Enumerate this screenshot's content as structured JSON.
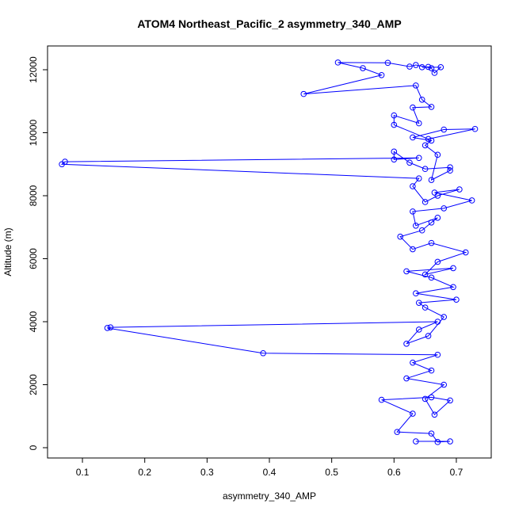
{
  "chart_data": {
    "type": "line",
    "title": "ATOM4 Northeast_Pacific_2 asymmetry_340_AMP",
    "x_label": "asymmetry_340_AMP",
    "y_label": "Altitude (m)",
    "color": "#0000ff",
    "x": [
      0.635,
      0.69,
      0.67,
      0.66,
      0.605,
      0.63,
      0.58,
      0.66,
      0.69,
      0.665,
      0.65,
      0.68,
      0.62,
      0.66,
      0.63,
      0.67,
      0.39,
      0.14,
      0.145,
      0.67,
      0.64,
      0.62,
      0.655,
      0.68,
      0.65,
      0.64,
      0.7,
      0.635,
      0.695,
      0.66,
      0.62,
      0.695,
      0.65,
      0.67,
      0.715,
      0.66,
      0.63,
      0.61,
      0.645,
      0.66,
      0.67,
      0.635,
      0.63,
      0.68,
      0.725,
      0.665,
      0.705,
      0.67,
      0.65,
      0.63,
      0.64,
      0.067,
      0.072,
      0.64,
      0.6,
      0.6,
      0.625,
      0.65,
      0.69,
      0.69,
      0.66,
      0.67,
      0.65,
      0.66,
      0.63,
      0.68,
      0.73,
      0.655,
      0.6,
      0.6,
      0.64,
      0.63,
      0.66,
      0.645,
      0.635,
      0.455,
      0.58,
      0.55,
      0.51,
      0.59,
      0.625,
      0.635,
      0.66,
      0.665,
      0.675,
      0.645,
      0.655
    ],
    "values": [
      200,
      200,
      180,
      450,
      500,
      1080,
      1520,
      1600,
      1500,
      1050,
      1550,
      2000,
      2200,
      2450,
      2700,
      2950,
      3000,
      3800,
      3820,
      4000,
      3750,
      3300,
      3550,
      4150,
      4450,
      4600,
      4700,
      4900,
      5100,
      5400,
      5600,
      5700,
      5500,
      5900,
      6200,
      6500,
      6300,
      6700,
      6900,
      7150,
      7300,
      7050,
      7500,
      7600,
      7850,
      8100,
      8200,
      8000,
      7800,
      8300,
      8550,
      9000,
      9080,
      9200,
      9150,
      9400,
      9050,
      8850,
      8900,
      8800,
      8500,
      9300,
      9600,
      9750,
      9850,
      10100,
      10120,
      9800,
      10250,
      10550,
      10300,
      10800,
      10820,
      11050,
      11500,
      11230,
      11830,
      12050,
      12230,
      12220,
      12100,
      12150,
      12050,
      11900,
      12080,
      12080,
      12090
    ],
    "xlim": [
      0.044,
      0.756
    ],
    "ylim": [
      -327,
      12755
    ],
    "xticks": [
      0.1,
      0.2,
      0.3,
      0.4,
      0.5,
      0.6,
      0.7
    ],
    "yticks": [
      0,
      2000,
      4000,
      6000,
      8000,
      10000,
      12000
    ]
  }
}
